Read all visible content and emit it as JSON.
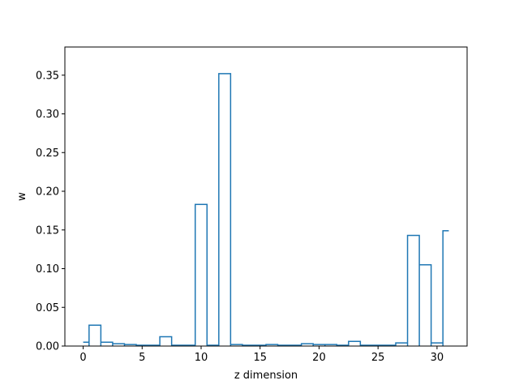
{
  "chart_data": {
    "type": "step",
    "title": "",
    "xlabel": "z dimension",
    "ylabel": "w",
    "x": [
      0,
      1,
      2,
      3,
      4,
      5,
      6,
      7,
      8,
      9,
      10,
      11,
      12,
      13,
      14,
      15,
      16,
      17,
      18,
      19,
      20,
      21,
      22,
      23,
      24,
      25,
      26,
      27,
      28,
      29,
      30,
      31
    ],
    "values": [
      0.005,
      0.027,
      0.005,
      0.003,
      0.002,
      0.001,
      0.001,
      0.012,
      0.001,
      0.001,
      0.183,
      0.001,
      0.352,
      0.002,
      0.001,
      0.001,
      0.002,
      0.001,
      0.001,
      0.003,
      0.002,
      0.002,
      0.001,
      0.006,
      0.001,
      0.001,
      0.001,
      0.004,
      0.143,
      0.105,
      0.004,
      0.149
    ],
    "xlim": [
      -1.55,
      32.55
    ],
    "ylim": [
      0,
      0.3864
    ],
    "x_ticks": [
      "0",
      "5",
      "10",
      "15",
      "20",
      "25",
      "30"
    ],
    "x_tick_values": [
      0,
      5,
      10,
      15,
      20,
      25,
      30
    ],
    "y_ticks": [
      "0.00",
      "0.05",
      "0.10",
      "0.15",
      "0.20",
      "0.25",
      "0.30",
      "0.35"
    ],
    "y_tick_values": [
      0,
      0.05,
      0.1,
      0.15,
      0.2,
      0.25,
      0.3,
      0.35
    ],
    "grid": false,
    "legend": "none",
    "line_color": "#1f77b4"
  }
}
